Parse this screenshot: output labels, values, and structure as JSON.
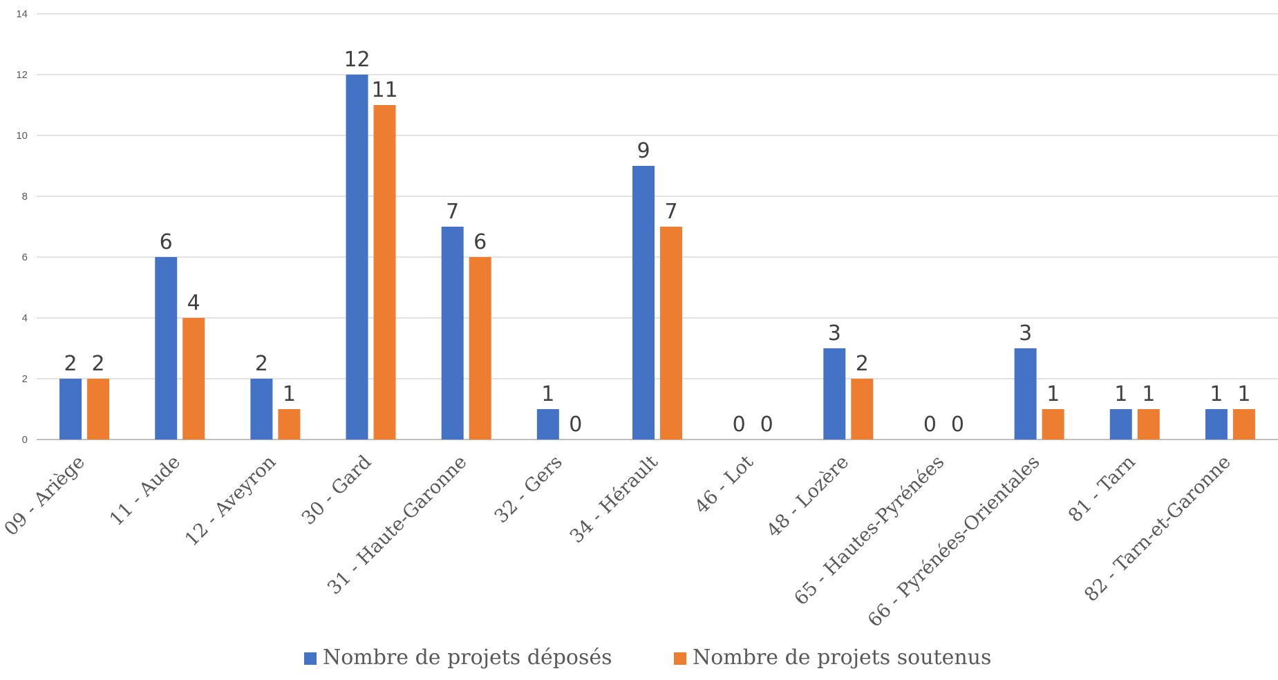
{
  "chart_data": {
    "type": "bar",
    "title": "",
    "xlabel": "",
    "ylabel": "",
    "ylim": [
      0,
      14
    ],
    "yticks": [
      0,
      2,
      4,
      6,
      8,
      10,
      12,
      14
    ],
    "grid": true,
    "legend_position": "bottom",
    "categories": [
      "09 - Ariège",
      "11 - Aude",
      "12 - Aveyron",
      "30 - Gard",
      "31 - Haute-Garonne",
      "32 - Gers",
      "34 - Hérault",
      "46 - Lot",
      "48 - Lozère",
      "65 - Hautes-Pyrénées",
      "66 - Pyrénées-Orientales",
      "81 - Tarn",
      "82 - Tarn-et-Garonne"
    ],
    "series": [
      {
        "name": "Nombre de projets déposés",
        "color": "#4472c4",
        "values": [
          2,
          6,
          2,
          12,
          7,
          1,
          9,
          0,
          3,
          0,
          3,
          1,
          1
        ]
      },
      {
        "name": "Nombre de projets soutenus",
        "color": "#ed7d31",
        "values": [
          2,
          4,
          1,
          11,
          6,
          0,
          7,
          0,
          2,
          0,
          1,
          1,
          1
        ]
      }
    ]
  }
}
